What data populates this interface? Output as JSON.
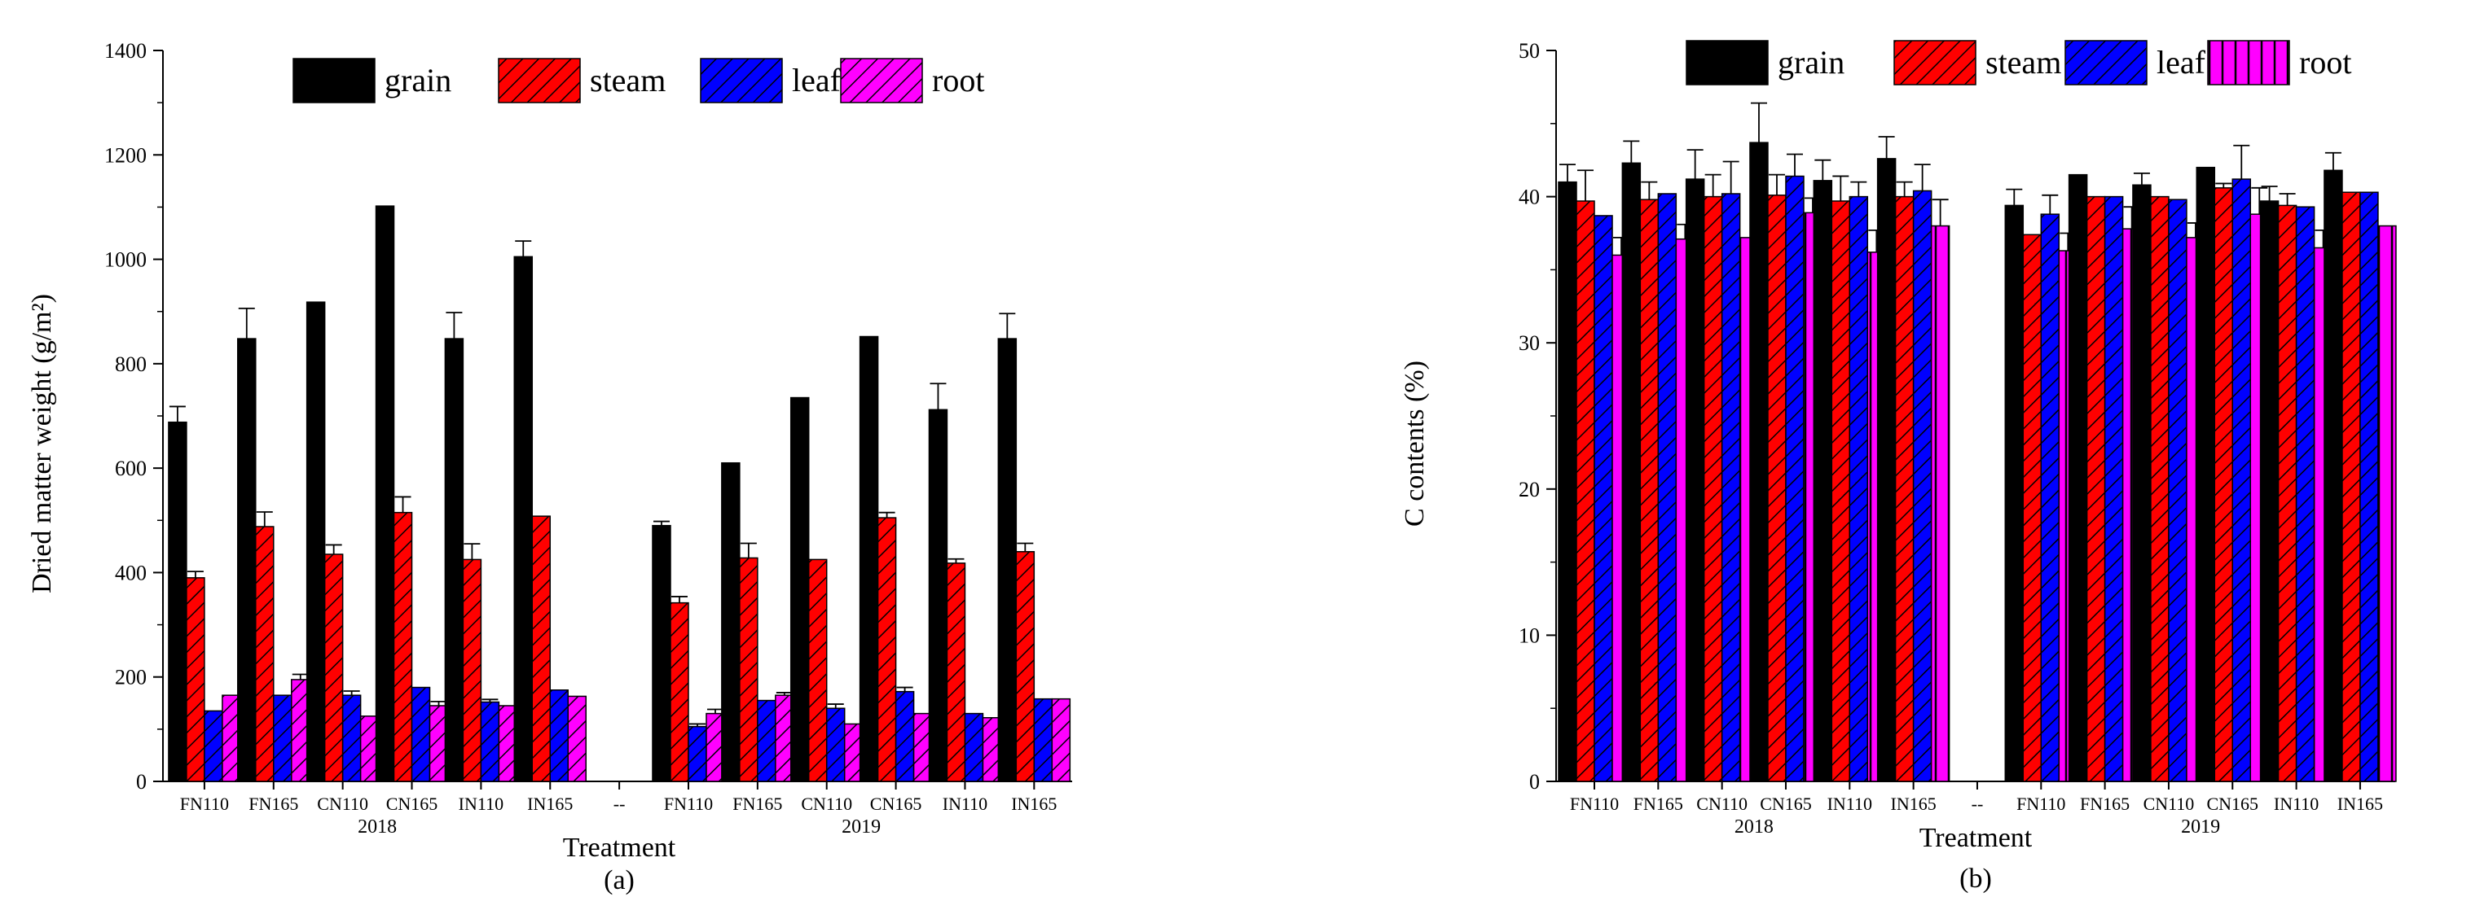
{
  "charts": [
    {
      "id": "a",
      "panel_label": "(a)",
      "chart_data": {
        "type": "bar",
        "title": "",
        "xlabel": "Treatment",
        "ylabel": "Dried matter weight (g/m²)",
        "ylim": [
          0,
          1400
        ],
        "yticks": [
          0,
          200,
          400,
          600,
          800,
          1000,
          1200,
          1400
        ],
        "categories": [
          "FN110",
          "FN165",
          "CN110",
          "CN165",
          "IN110",
          "IN165",
          "--",
          "FN110",
          "FN165",
          "CN110",
          "CN165",
          "IN110",
          "IN165"
        ],
        "groups": [
          {
            "label": "2018",
            "from": 0,
            "to": 5
          },
          {
            "label": "2019",
            "from": 7,
            "to": 12
          }
        ],
        "legend_position": "top-center",
        "grid": false,
        "series": [
          {
            "name": "grain",
            "color": "#000000",
            "pattern": "solid",
            "values": [
              688,
              848,
              918,
              1102,
              848,
              1005,
              null,
              490,
              610,
              735,
              852,
              712,
              848
            ],
            "errors": [
              30,
              58,
              0,
              0,
              50,
              30,
              null,
              8,
              0,
              0,
              0,
              50,
              48
            ]
          },
          {
            "name": "steam",
            "color": "#ff0000",
            "pattern": "hatch",
            "values": [
              390,
              488,
              435,
              515,
              425,
              508,
              null,
              342,
              428,
              425,
              505,
              418,
              440
            ],
            "errors": [
              12,
              28,
              18,
              30,
              30,
              0,
              null,
              12,
              28,
              0,
              10,
              8,
              16
            ]
          },
          {
            "name": "leaf",
            "color": "#0000ff",
            "pattern": "hatch",
            "values": [
              135,
              165,
              165,
              180,
              152,
              175,
              null,
              105,
              155,
              140,
              172,
              130,
              158
            ],
            "errors": [
              0,
              0,
              8,
              0,
              5,
              0,
              null,
              5,
              0,
              8,
              8,
              0,
              0
            ],
            "values_note": ""
          },
          {
            "name": "root",
            "color": "#ff00ff",
            "pattern": "hatch",
            "values": [
              165,
              195,
              125,
              145,
              145,
              163,
              null,
              130,
              165,
              110,
              130,
              122,
              158
            ],
            "errors": [
              0,
              10,
              0,
              8,
              0,
              0,
              null,
              8,
              5,
              0,
              0,
              0,
              0
            ]
          }
        ]
      }
    },
    {
      "id": "b",
      "panel_label": "(b)",
      "chart_data": {
        "type": "bar",
        "title": "",
        "xlabel": "Treatment",
        "ylabel": "C contents (%)",
        "ylim": [
          0,
          50
        ],
        "yticks": [
          0,
          10,
          20,
          30,
          40,
          50
        ],
        "categories": [
          "FN110",
          "FN165",
          "CN110",
          "CN165",
          "IN110",
          "IN165",
          "--",
          "FN110",
          "FN165",
          "CN110",
          "CN165",
          "IN110",
          "IN165"
        ],
        "groups": [
          {
            "label": "2018",
            "from": 0,
            "to": 5
          },
          {
            "label": "2019",
            "from": 7,
            "to": 12
          }
        ],
        "legend_position": "top-center",
        "grid": false,
        "series": [
          {
            "name": "grain",
            "color": "#000000",
            "pattern": "solid",
            "values": [
              41.0,
              42.3,
              41.2,
              43.7,
              41.1,
              42.6,
              null,
              39.4,
              41.5,
              40.8,
              42.0,
              39.7,
              41.8
            ],
            "errors": [
              1.2,
              1.5,
              2.0,
              2.7,
              1.4,
              1.5,
              null,
              1.1,
              0,
              0.8,
              0,
              1.0,
              1.2
            ]
          },
          {
            "name": "steam",
            "color": "#ff0000",
            "pattern": "hatch",
            "values": [
              39.7,
              39.8,
              40.0,
              40.1,
              39.7,
              40.0,
              null,
              37.4,
              40.0,
              40.0,
              40.6,
              39.4,
              40.3
            ],
            "errors": [
              2.1,
              1.2,
              1.5,
              1.4,
              1.7,
              1.0,
              null,
              0,
              0,
              0,
              0.3,
              0.8,
              0
            ],
            "values_note": ""
          },
          {
            "name": "leaf",
            "color": "#0000ff",
            "pattern": "hatch",
            "values": [
              38.7,
              40.2,
              40.2,
              41.4,
              40.0,
              40.4,
              null,
              38.8,
              40.0,
              39.8,
              41.2,
              39.3,
              40.3
            ],
            "errors": [
              0,
              0,
              2.2,
              1.5,
              1.0,
              1.8,
              null,
              1.3,
              0,
              0,
              2.3,
              0,
              0
            ]
          },
          {
            "name": "root",
            "color": "#ff00ff",
            "pattern": "crosshatch",
            "values": [
              36.0,
              37.1,
              37.2,
              38.9,
              36.2,
              38.0,
              null,
              36.3,
              37.8,
              37.2,
              38.8,
              36.5,
              38.0
            ],
            "errors": [
              1.2,
              1.0,
              0,
              1.0,
              1.5,
              1.8,
              null,
              1.2,
              1.5,
              1.0,
              1.8,
              1.2,
              0
            ]
          }
        ]
      }
    }
  ]
}
